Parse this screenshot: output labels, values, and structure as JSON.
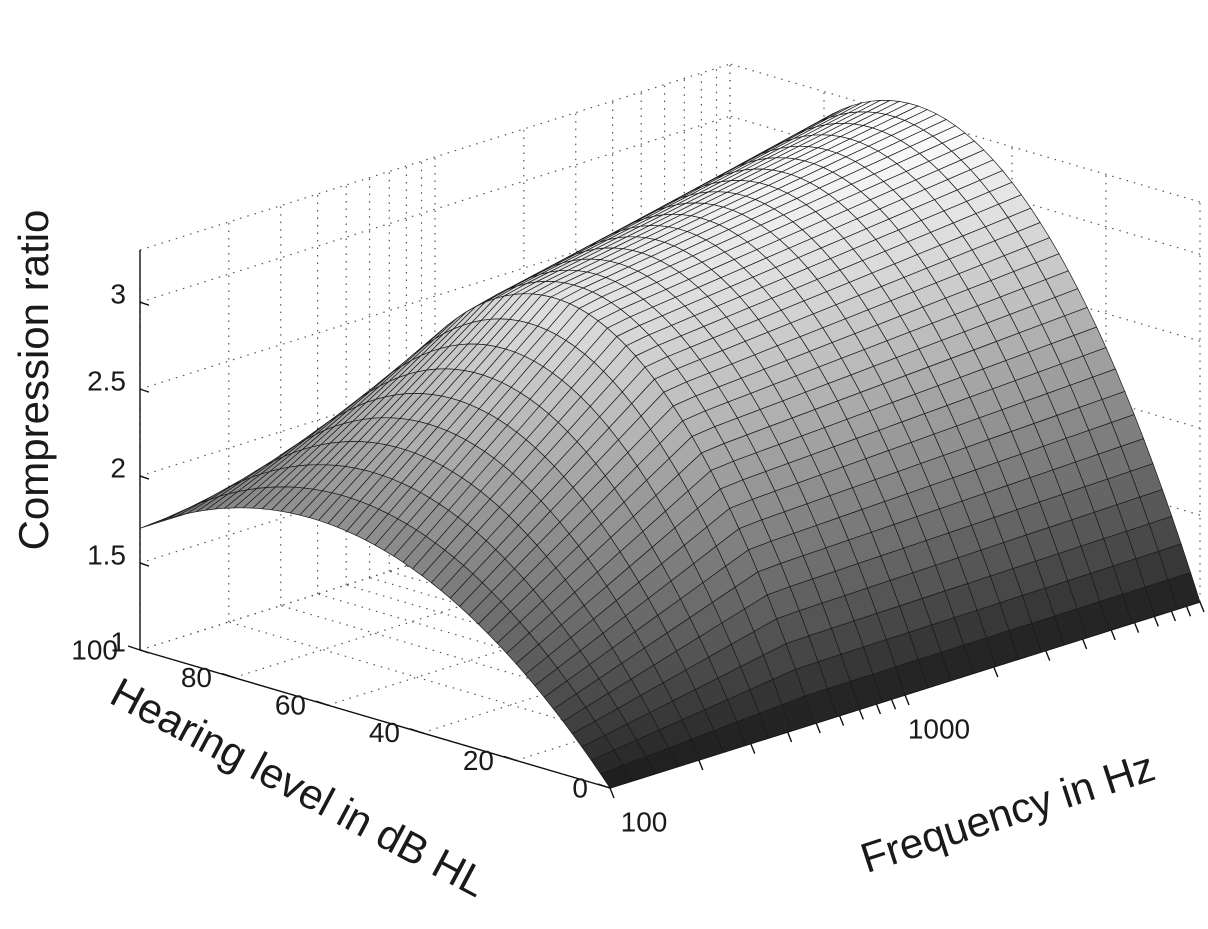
{
  "chart_data": {
    "type": "surface",
    "xlabel": "Frequency in Hz",
    "ylabel": "Hearing level in dB HL",
    "zlabel": "Compression ratio",
    "x_scale": "log",
    "xlim": [
      100,
      10000
    ],
    "x_ticks": [
      100,
      1000
    ],
    "x_tick_labels": [
      "100",
      "1000"
    ],
    "ylim": [
      0,
      100
    ],
    "y_ticks": [
      0,
      20,
      40,
      60,
      80,
      100
    ],
    "y_tick_labels": [
      "0",
      "20",
      "40",
      "60",
      "80",
      "100"
    ],
    "zlim": [
      1,
      3.3
    ],
    "z_ticks": [
      1,
      1.5,
      2,
      2.5,
      3
    ],
    "z_tick_labels": [
      "1",
      "1.5",
      "2",
      "2.5",
      "3"
    ],
    "grid": true,
    "colormap": "gray",
    "surface": {
      "hearing_level_dB": [
        0,
        50,
        100
      ],
      "compression_ratio_at_500Hz": [
        1.0,
        3.0,
        1.7
      ],
      "compression_ratio_at_100Hz": [
        1.0,
        2.0,
        1.7
      ],
      "compression_ratio_at_10000Hz": [
        1.0,
        3.3,
        2.4
      ]
    }
  }
}
